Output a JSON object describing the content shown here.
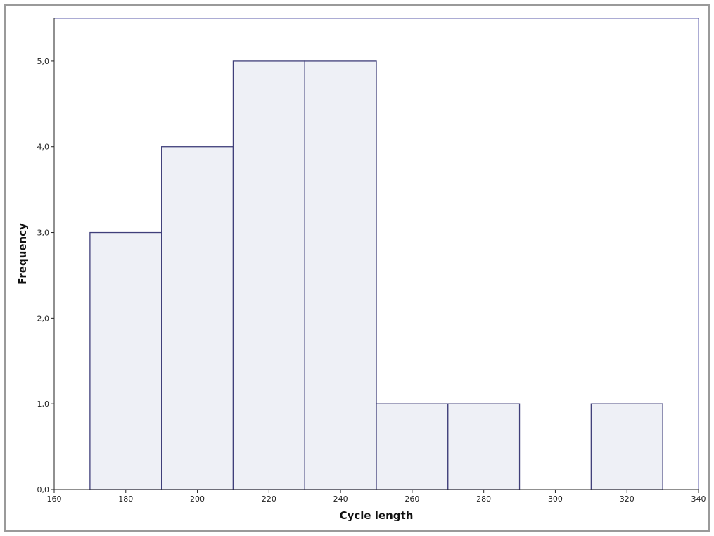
{
  "chart_data": {
    "type": "bar",
    "subtype": "histogram",
    "xlabel": "Cycle length",
    "ylabel": "Frequency",
    "xlim": [
      160,
      340
    ],
    "ylim": [
      0,
      5.5
    ],
    "x_ticks": [
      160,
      180,
      200,
      220,
      240,
      260,
      280,
      300,
      320,
      340
    ],
    "x_tick_labels": [
      "160",
      "180",
      "200",
      "220",
      "240",
      "260",
      "280",
      "300",
      "320",
      "340"
    ],
    "y_ticks": [
      0,
      1,
      2,
      3,
      4,
      5
    ],
    "y_tick_labels": [
      "0,0",
      "1,0",
      "2,0",
      "3,0",
      "4,0",
      "5,0"
    ],
    "bins": [
      {
        "start": 170,
        "end": 190,
        "count": 3
      },
      {
        "start": 190,
        "end": 210,
        "count": 4
      },
      {
        "start": 210,
        "end": 230,
        "count": 5
      },
      {
        "start": 230,
        "end": 250,
        "count": 5
      },
      {
        "start": 250,
        "end": 270,
        "count": 1
      },
      {
        "start": 270,
        "end": 290,
        "count": 1
      },
      {
        "start": 290,
        "end": 310,
        "count": 0
      },
      {
        "start": 310,
        "end": 330,
        "count": 1
      }
    ],
    "grid": false,
    "colors": {
      "bar_fill": "#eef0f6",
      "bar_stroke": "#3f3f7a",
      "plot_border": "#5a5aa8"
    }
  }
}
